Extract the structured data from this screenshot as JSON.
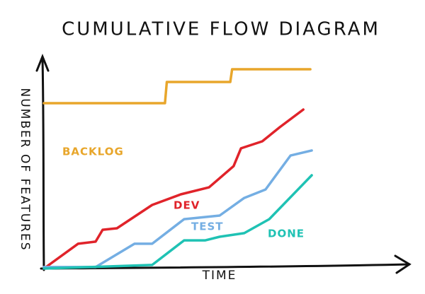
{
  "chart_data": {
    "type": "line",
    "title": "CUMULATIVE FLOW DIAGRAM",
    "x_label": "TIME",
    "y_label": "NUMBER OF FEATURES",
    "xlim": [
      0,
      100
    ],
    "ylim": [
      0,
      100
    ],
    "series": [
      {
        "name": "BACKLOG",
        "color": "#e8a62b",
        "x": [
          0,
          33,
          33.5,
          50.8,
          51.3,
          72.6
        ],
        "values": [
          78,
          78,
          88,
          88,
          94,
          94
        ]
      },
      {
        "name": "DEV",
        "color": "#e0232a",
        "x": [
          0,
          9.3,
          14.1,
          16,
          19.9,
          29.5,
          37.3,
          45,
          51.7,
          53.7,
          59.5,
          64.3,
          70.7
        ],
        "values": [
          0,
          11.7,
          12.7,
          18.3,
          19,
          30,
          35,
          38.3,
          48.3,
          56.7,
          60,
          66.7,
          75
        ]
      },
      {
        "name": "TEST",
        "color": "#74aee3",
        "x": [
          0,
          14.1,
          24.7,
          29.5,
          38.2,
          47.9,
          54.6,
          60.4,
          67.2,
          73
        ],
        "values": [
          0.7,
          0.7,
          11.7,
          11.7,
          23.3,
          25,
          33.3,
          37.3,
          53.3,
          55.7
        ]
      },
      {
        "name": "DONE",
        "color": "#1fc2b4",
        "x": [
          0,
          29.5,
          38.2,
          44,
          47.9,
          54.6,
          61.4,
          73
        ],
        "values": [
          0,
          1.7,
          13.3,
          13.3,
          15,
          16.7,
          23.3,
          44
        ]
      }
    ]
  }
}
